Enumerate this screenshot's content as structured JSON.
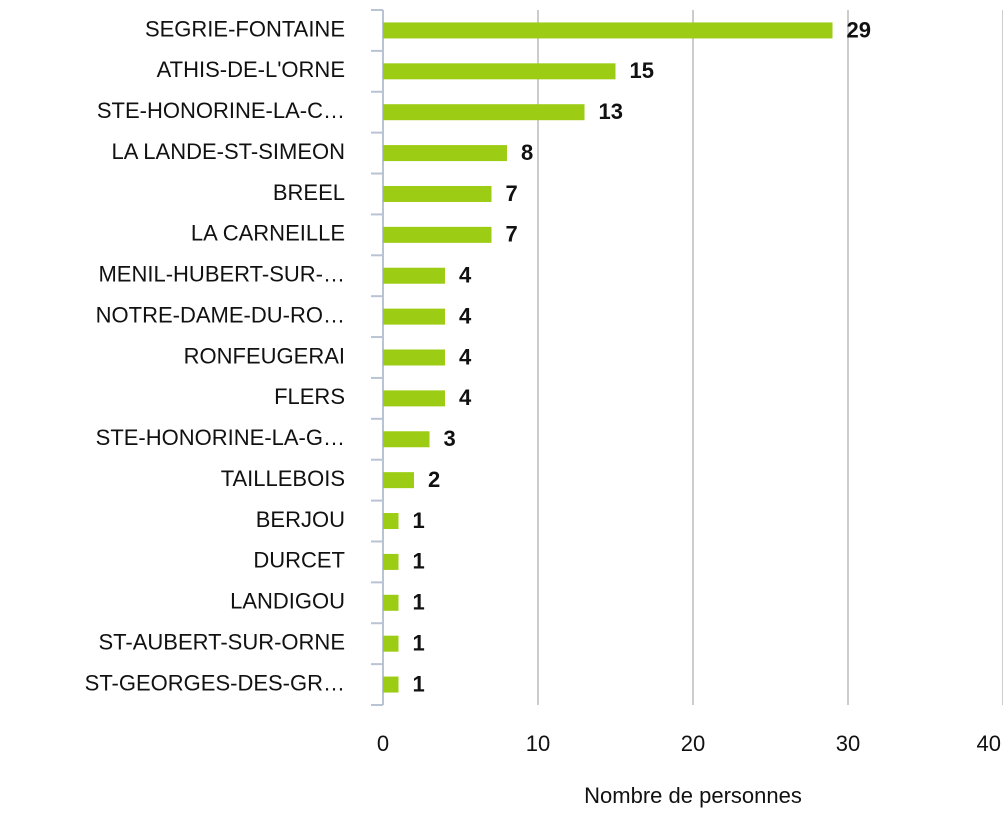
{
  "chart_data": {
    "type": "bar",
    "orientation": "horizontal",
    "categories": [
      "SEGRIE-FONTAINE",
      "ATHIS-DE-L'ORNE",
      "STE-HONORINE-LA-C…",
      "LA LANDE-ST-SIMEON",
      "BREEL",
      "LA CARNEILLE",
      "MENIL-HUBERT-SUR-…",
      "NOTRE-DAME-DU-RO…",
      "RONFEUGERAI",
      "FLERS",
      "STE-HONORINE-LA-G…",
      "TAILLEBOIS",
      "BERJOU",
      "DURCET",
      "LANDIGOU",
      "ST-AUBERT-SUR-ORNE",
      "ST-GEORGES-DES-GR…"
    ],
    "values": [
      29,
      15,
      13,
      8,
      7,
      7,
      4,
      4,
      4,
      4,
      3,
      2,
      1,
      1,
      1,
      1,
      1
    ],
    "color": "#9dcc14",
    "x_label": "Nombre de personnes",
    "xlim": [
      0,
      40
    ],
    "xticks": [
      0,
      10,
      20,
      30,
      40
    ],
    "grid": true
  }
}
